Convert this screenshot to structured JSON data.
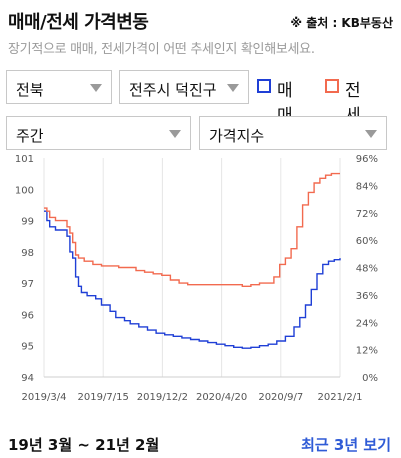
{
  "header": {
    "title": "매매/전세 가격변동",
    "source": "※ 출처 : KB부동산",
    "subtitle": "장기적으로 매매, 전세가격이 어떤 추세인지 확인해보세요."
  },
  "filters": {
    "region": "전북",
    "district": "전주시 덕진구",
    "period": "주간",
    "metric": "가격지수"
  },
  "legend": [
    {
      "label": "매매",
      "color": "#1f3fd6"
    },
    {
      "label": "전세",
      "color": "#f26a4f"
    }
  ],
  "chart_data": {
    "type": "line",
    "x_ticks": [
      "2019/3/4",
      "2019/7/15",
      "2019/12/2",
      "2020/4/20",
      "2020/9/7",
      "2021/2/1"
    ],
    "y_left": {
      "ticks": [
        "94",
        "95",
        "96",
        "97",
        "98",
        "99",
        "100",
        "101"
      ],
      "range": [
        94,
        101
      ]
    },
    "y_right": {
      "ticks": [
        "0%",
        "12%",
        "24%",
        "36%",
        "48%",
        "60%",
        "72%",
        "84%",
        "96%"
      ],
      "range": [
        0,
        96
      ]
    },
    "grid": "vertical",
    "series": [
      {
        "name": "매매",
        "color": "#1f3fd6",
        "axis": "left",
        "points": [
          [
            0,
            99.3
          ],
          [
            1,
            99.0
          ],
          [
            2,
            98.8
          ],
          [
            4,
            98.7
          ],
          [
            6,
            98.7
          ],
          [
            8,
            98.5
          ],
          [
            9,
            98.0
          ],
          [
            10,
            97.8
          ],
          [
            11,
            97.2
          ],
          [
            12,
            96.9
          ],
          [
            13,
            96.7
          ],
          [
            15,
            96.6
          ],
          [
            18,
            96.5
          ],
          [
            20,
            96.3
          ],
          [
            23,
            96.1
          ],
          [
            25,
            95.9
          ],
          [
            28,
            95.8
          ],
          [
            30,
            95.7
          ],
          [
            33,
            95.6
          ],
          [
            36,
            95.5
          ],
          [
            39,
            95.4
          ],
          [
            42,
            95.35
          ],
          [
            45,
            95.3
          ],
          [
            48,
            95.25
          ],
          [
            51,
            95.2
          ],
          [
            54,
            95.15
          ],
          [
            57,
            95.1
          ],
          [
            60,
            95.05
          ],
          [
            63,
            95.0
          ],
          [
            66,
            94.95
          ],
          [
            69,
            94.92
          ],
          [
            72,
            94.95
          ],
          [
            75,
            95.0
          ],
          [
            78,
            95.05
          ],
          [
            81,
            95.15
          ],
          [
            84,
            95.3
          ],
          [
            87,
            95.6
          ],
          [
            89,
            95.9
          ],
          [
            91,
            96.3
          ],
          [
            93,
            96.8
          ],
          [
            95,
            97.3
          ],
          [
            97,
            97.6
          ],
          [
            99,
            97.7
          ],
          [
            101,
            97.75
          ],
          [
            103,
            97.8
          ]
        ]
      },
      {
        "name": "전세",
        "color": "#f26a4f",
        "axis": "left",
        "points": [
          [
            0,
            99.4
          ],
          [
            1,
            99.3
          ],
          [
            2,
            99.1
          ],
          [
            4,
            99.0
          ],
          [
            6,
            99.0
          ],
          [
            8,
            98.8
          ],
          [
            9,
            98.6
          ],
          [
            10,
            98.3
          ],
          [
            11,
            97.9
          ],
          [
            12,
            97.8
          ],
          [
            14,
            97.7
          ],
          [
            17,
            97.6
          ],
          [
            20,
            97.55
          ],
          [
            23,
            97.55
          ],
          [
            26,
            97.5
          ],
          [
            29,
            97.5
          ],
          [
            32,
            97.4
          ],
          [
            35,
            97.35
          ],
          [
            38,
            97.3
          ],
          [
            41,
            97.25
          ],
          [
            44,
            97.1
          ],
          [
            47,
            97.0
          ],
          [
            50,
            96.95
          ],
          [
            54,
            96.95
          ],
          [
            58,
            96.95
          ],
          [
            62,
            96.95
          ],
          [
            66,
            96.95
          ],
          [
            69,
            96.9
          ],
          [
            72,
            96.95
          ],
          [
            75,
            97.0
          ],
          [
            78,
            97.0
          ],
          [
            80,
            97.2
          ],
          [
            82,
            97.6
          ],
          [
            84,
            97.8
          ],
          [
            86,
            98.1
          ],
          [
            88,
            98.8
          ],
          [
            90,
            99.5
          ],
          [
            92,
            99.9
          ],
          [
            94,
            100.2
          ],
          [
            96,
            100.35
          ],
          [
            98,
            100.45
          ],
          [
            100,
            100.5
          ],
          [
            103,
            100.5
          ]
        ]
      }
    ]
  },
  "footer": {
    "range_text": "19년 3월 ~ 21년 2월",
    "link_text": "최근 3년 보기"
  }
}
